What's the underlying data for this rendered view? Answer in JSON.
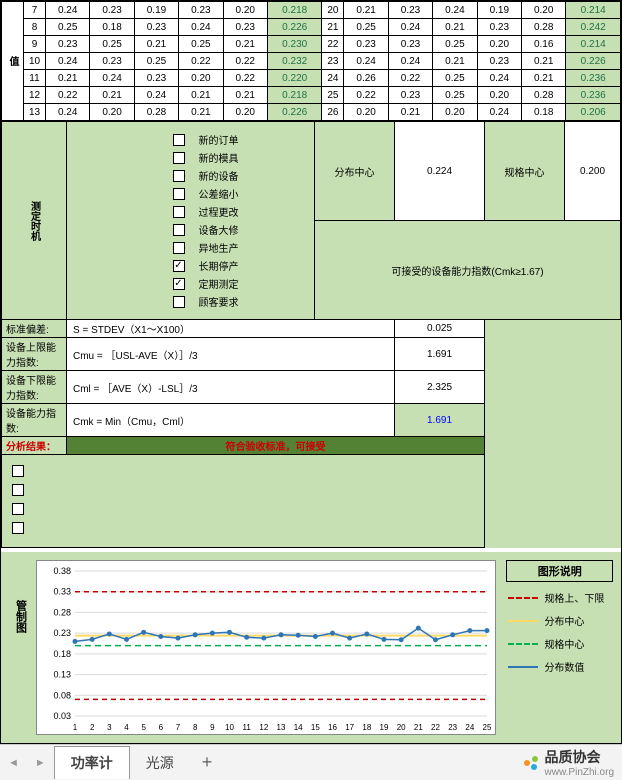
{
  "top_label": "值",
  "data_table": {
    "rows": [
      {
        "n1": 7,
        "v": [
          0.24,
          0.23,
          0.19,
          0.23,
          0.2
        ],
        "g": 0.218,
        "n2": 20,
        "w": [
          0.21,
          0.23,
          0.24,
          0.19,
          0.2
        ],
        "h": 0.214
      },
      {
        "n1": 8,
        "v": [
          0.25,
          0.18,
          0.23,
          0.24,
          0.23
        ],
        "g": 0.226,
        "n2": 21,
        "w": [
          0.25,
          0.24,
          0.21,
          0.23,
          0.28
        ],
        "h": 0.242
      },
      {
        "n1": 9,
        "v": [
          0.23,
          0.25,
          0.21,
          0.25,
          0.21
        ],
        "g": 0.23,
        "n2": 22,
        "w": [
          0.23,
          0.23,
          0.25,
          0.2,
          0.16
        ],
        "h": 0.214
      },
      {
        "n1": 10,
        "v": [
          0.24,
          0.23,
          0.25,
          0.22,
          0.22
        ],
        "g": 0.232,
        "n2": 23,
        "w": [
          0.24,
          0.24,
          0.21,
          0.23,
          0.21
        ],
        "h": 0.226
      },
      {
        "n1": 11,
        "v": [
          0.21,
          0.24,
          0.23,
          0.2,
          0.22
        ],
        "g": 0.22,
        "n2": 24,
        "w": [
          0.26,
          0.22,
          0.25,
          0.24,
          0.21
        ],
        "h": 0.236
      },
      {
        "n1": 12,
        "v": [
          0.22,
          0.21,
          0.24,
          0.21,
          0.21
        ],
        "g": 0.218,
        "n2": 25,
        "w": [
          0.22,
          0.23,
          0.25,
          0.2,
          0.28
        ],
        "h": 0.236
      },
      {
        "n1": 13,
        "v": [
          0.24,
          0.2,
          0.28,
          0.21,
          0.2
        ],
        "g": 0.226,
        "n2": 26,
        "w": [
          0.2,
          0.21,
          0.2,
          0.24,
          0.18
        ],
        "h": 0.206
      }
    ]
  },
  "summary": {
    "dist_center_label": "分布中心",
    "dist_center": "0.224",
    "spec_center_label": "规格中心",
    "spec_center": "0.200",
    "accept_label": "可接受的设备能力指数(Cmk≥1.67)",
    "rows": [
      {
        "label": "标准偏差:",
        "formula": "S = STDEV（X1～X100）",
        "value": "0.025"
      },
      {
        "label": "设备上限能力指数:",
        "formula": "Cmu = ［USL-AVE（X）］/3",
        "value": "1.691"
      },
      {
        "label": "设备下限能力指数:",
        "formula": "Cml = ［AVE（X）-LSL］/3",
        "value": "2.325"
      },
      {
        "label": "设备能力指数:",
        "formula": "Cmk = Min（Cmu，Cml）",
        "value": "1.691"
      }
    ],
    "result_label": "分析结果：",
    "result_text": "符合验收标准，可接受"
  },
  "mid_label": "测定时机",
  "checklist": [
    {
      "label": "新的订单",
      "checked": false
    },
    {
      "label": "新的模具",
      "checked": false
    },
    {
      "label": "新的设备",
      "checked": false
    },
    {
      "label": "公差缩小",
      "checked": false
    },
    {
      "label": "过程更改",
      "checked": false
    },
    {
      "label": "设备大修",
      "checked": false
    },
    {
      "label": "异地生产",
      "checked": false
    },
    {
      "label": "长期停产",
      "checked": true
    },
    {
      "label": "定期测定",
      "checked": true
    },
    {
      "label": "顾客要求",
      "checked": false
    }
  ],
  "extra_checks": [
    false,
    false,
    false,
    false
  ],
  "chart_label": "管制图",
  "chart": {
    "type": "line",
    "x_count": 25,
    "y_ticks": [
      0.03,
      0.08,
      0.13,
      0.18,
      0.23,
      0.28,
      0.33,
      0.38
    ],
    "usl": 0.33,
    "lsl": 0.07,
    "center_dist": 0.224,
    "center_spec": 0.2,
    "values": [
      0.21,
      0.215,
      0.228,
      0.215,
      0.232,
      0.222,
      0.218,
      0.226,
      0.23,
      0.232,
      0.22,
      0.218,
      0.226,
      0.225,
      0.222,
      0.23,
      0.218,
      0.228,
      0.215,
      0.214,
      0.242,
      0.214,
      0.226,
      0.236,
      0.236
    ],
    "colors": {
      "usl": "#c00000",
      "dist": "#ffd966",
      "spec": "#00b050",
      "series": "#2e75b6",
      "grid": "#d9d9d9",
      "bg": "#ffffff"
    }
  },
  "legend": {
    "title": "图形说明",
    "items": [
      {
        "cls": "red",
        "label": "规格上、下限"
      },
      {
        "cls": "yellow",
        "label": "分布中心"
      },
      {
        "cls": "green",
        "label": "规格中心"
      },
      {
        "cls": "blue",
        "label": "分布数值"
      }
    ]
  },
  "tabs": {
    "active": "功率计",
    "other": "光源",
    "add": "+"
  },
  "brand": {
    "cn": "品质协会",
    "url": "www.PinZhi.org"
  }
}
